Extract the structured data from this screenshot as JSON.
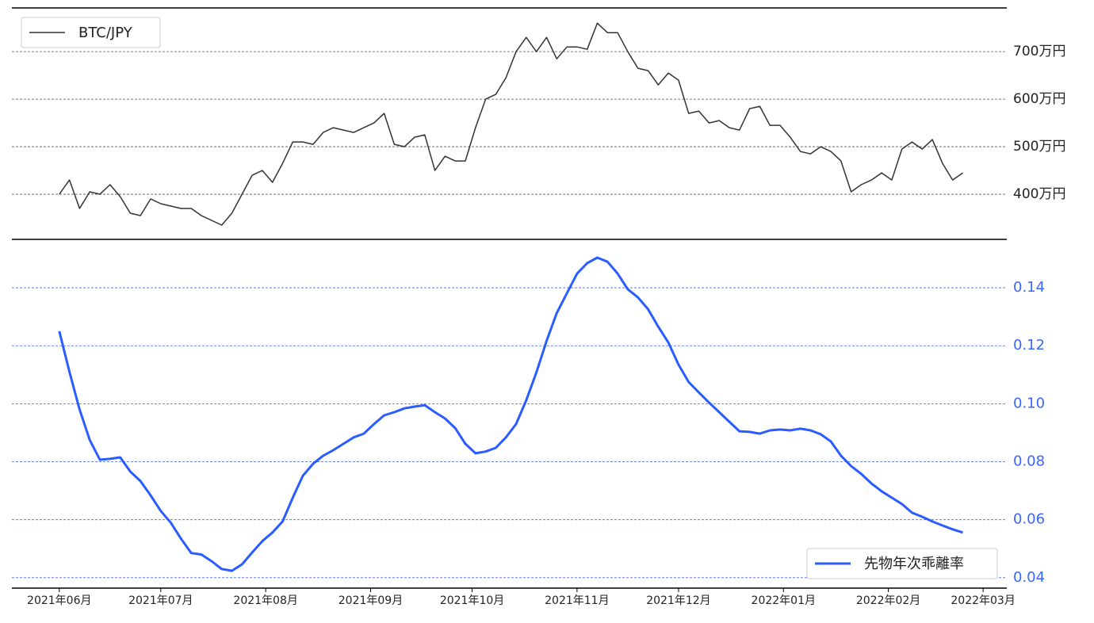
{
  "chart_data": [
    {
      "type": "line",
      "legend": "upper left",
      "grid": true,
      "x": [
        0,
        3,
        6,
        9,
        12,
        15,
        18,
        21,
        24,
        27,
        30,
        33,
        36,
        39,
        42,
        45,
        48,
        51,
        54,
        57,
        60,
        63,
        66,
        69,
        72,
        75,
        78,
        81,
        84,
        87,
        90,
        93,
        96,
        99,
        102,
        105,
        108,
        111,
        114,
        117,
        120,
        123,
        126,
        129,
        132,
        135,
        138,
        141,
        144,
        147,
        150,
        153,
        156,
        159,
        162,
        165,
        168,
        171,
        174,
        177,
        180,
        183,
        186,
        189,
        192,
        195,
        198,
        201,
        204,
        207,
        210,
        213,
        216,
        219,
        222,
        225,
        228,
        231,
        234,
        237,
        240,
        243,
        246,
        249,
        252,
        255,
        258,
        261,
        264,
        267
      ],
      "xlim": [
        -14,
        280
      ],
      "ylim": [
        3050000,
        7920000
      ],
      "yticks": [
        {
          "value": 4000000,
          "label": "400万円"
        },
        {
          "value": 5000000,
          "label": "500万円"
        },
        {
          "value": 6000000,
          "label": "600万円"
        },
        {
          "value": 7000000,
          "label": "700万円"
        }
      ],
      "series": [
        {
          "name": "BTC/JPY",
          "color": "#333333",
          "values": [
            4000000,
            4300000,
            3700000,
            4050000,
            4000000,
            4200000,
            3950000,
            3600000,
            3550000,
            3900000,
            3800000,
            3750000,
            3700000,
            3700000,
            3550000,
            3450000,
            3350000,
            3600000,
            4000000,
            4400000,
            4500000,
            4250000,
            4650000,
            5100000,
            5100000,
            5050000,
            5300000,
            5400000,
            5350000,
            5300000,
            5400000,
            5500000,
            5700000,
            5050000,
            5000000,
            5200000,
            5250000,
            4500000,
            4800000,
            4700000,
            4700000,
            5400000,
            6000000,
            6100000,
            6450000,
            7000000,
            7300000,
            7000000,
            7300000,
            6850000,
            7100000,
            7100000,
            7050000,
            7600000,
            7400000,
            7400000,
            7000000,
            6650000,
            6600000,
            6300000,
            6550000,
            6400000,
            5700000,
            5750000,
            5500000,
            5550000,
            5400000,
            5350000,
            5800000,
            5850000,
            5450000,
            5450000,
            5200000,
            4900000,
            4850000,
            5000000,
            4900000,
            4700000,
            4050000,
            4200000,
            4300000,
            4450000,
            4300000,
            4950000,
            5100000,
            4950000,
            5150000,
            4650000,
            4300000,
            4450000
          ]
        }
      ]
    },
    {
      "type": "line",
      "legend": "lower right",
      "grid": true,
      "x": [
        0,
        3,
        6,
        9,
        12,
        15,
        18,
        21,
        24,
        27,
        30,
        33,
        36,
        39,
        42,
        45,
        48,
        51,
        54,
        57,
        60,
        63,
        66,
        69,
        72,
        75,
        78,
        81,
        84,
        87,
        90,
        93,
        96,
        99,
        102,
        105,
        108,
        111,
        114,
        117,
        120,
        123,
        126,
        129,
        132,
        135,
        138,
        141,
        144,
        147,
        150,
        153,
        156,
        159,
        162,
        165,
        168,
        171,
        174,
        177,
        180,
        183,
        186,
        189,
        192,
        195,
        198,
        201,
        204,
        207,
        210,
        213,
        216,
        219,
        222,
        225,
        228,
        231,
        234,
        237,
        240,
        243,
        246,
        249,
        252,
        255,
        258,
        261,
        264,
        267
      ],
      "xlim": [
        -14,
        280
      ],
      "xticks": [
        {
          "value": 0,
          "label": "2021年06月"
        },
        {
          "value": 30,
          "label": "2021年07月"
        },
        {
          "value": 61,
          "label": "2021年08月"
        },
        {
          "value": 92,
          "label": "2021年09月"
        },
        {
          "value": 122,
          "label": "2021年10月"
        },
        {
          "value": 153,
          "label": "2021年11月"
        },
        {
          "value": 183,
          "label": "2021年12月"
        },
        {
          "value": 214,
          "label": "2022年01月"
        },
        {
          "value": 245,
          "label": "2022年02月"
        },
        {
          "value": 273,
          "label": "2022年03月"
        }
      ],
      "ylim": [
        0.0364,
        0.1567
      ],
      "yticks": [
        0.04,
        0.06,
        0.08,
        {
          "value": 0.1,
          "label": "0.10"
        },
        0.12,
        0.14
      ],
      "series": [
        {
          "name": "先物年次乖離率",
          "color": "#2b5cff",
          "values": [
            0.125,
            0.111,
            0.098,
            0.0875,
            0.0807,
            0.081,
            0.0815,
            0.0766,
            0.0733,
            0.0684,
            0.063,
            0.0589,
            0.0534,
            0.0485,
            0.048,
            0.0457,
            0.043,
            0.0424,
            0.0446,
            0.0487,
            0.0526,
            0.0556,
            0.0594,
            0.0676,
            0.0752,
            0.0793,
            0.0821,
            0.084,
            0.0862,
            0.0884,
            0.0897,
            0.093,
            0.096,
            0.0971,
            0.0984,
            0.099,
            0.0995,
            0.0971,
            0.0949,
            0.0916,
            0.0862,
            0.0829,
            0.0835,
            0.0848,
            0.0884,
            0.093,
            0.1012,
            0.1108,
            0.1217,
            0.1313,
            0.1381,
            0.1449,
            0.1485,
            0.1504,
            0.149,
            0.1449,
            0.1395,
            0.1367,
            0.1326,
            0.1266,
            0.1211,
            0.1135,
            0.1075,
            0.1039,
            0.1004,
            0.0971,
            0.0938,
            0.0905,
            0.0903,
            0.0897,
            0.0908,
            0.0911,
            0.0908,
            0.0914,
            0.0908,
            0.0895,
            0.087,
            0.0821,
            0.0785,
            0.0758,
            0.0725,
            0.0698,
            0.0676,
            0.0654,
            0.0624,
            0.061,
            0.0594,
            0.058,
            0.0567,
            0.0556
          ]
        }
      ]
    }
  ]
}
